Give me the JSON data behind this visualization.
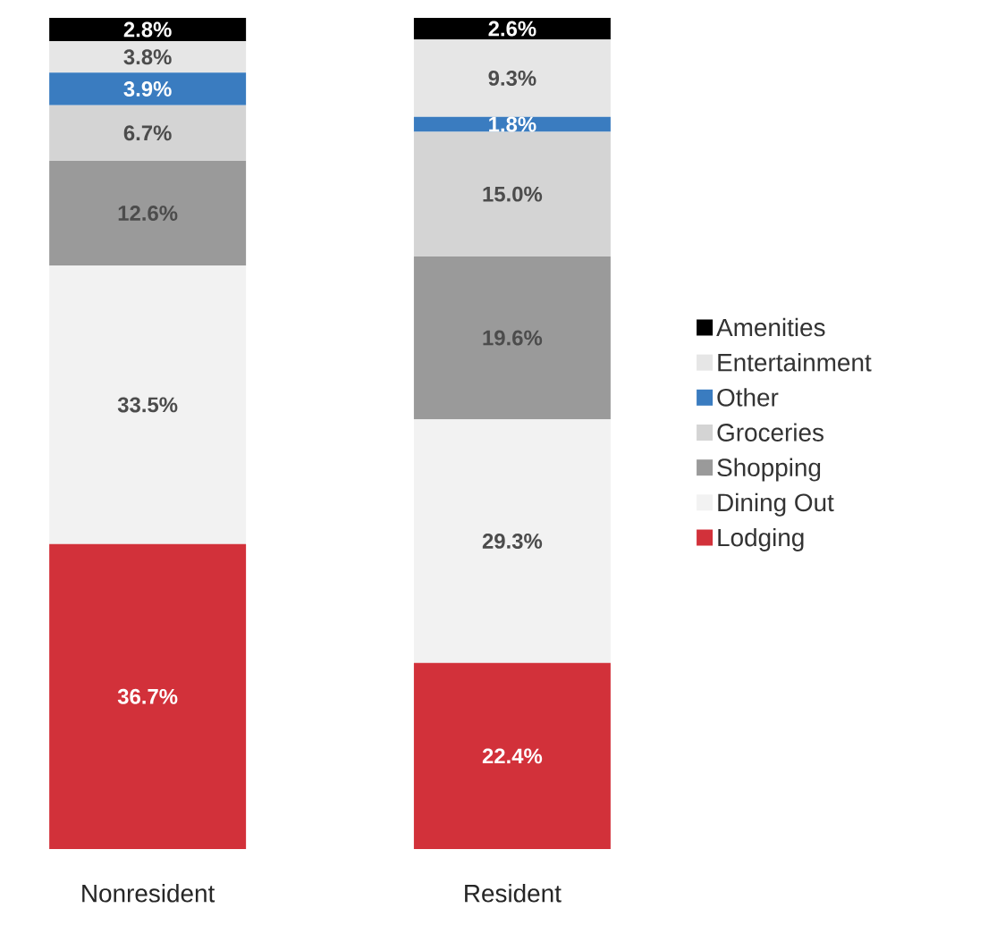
{
  "chart_data": {
    "type": "bar",
    "stacked": true,
    "legend": "right",
    "categories": [
      "Nonresident",
      "Resident"
    ],
    "series": [
      {
        "name": "Lodging",
        "color": "#d2313a",
        "values": [
          36.7,
          22.4
        ],
        "value_labels": [
          "36.7%",
          "22.4%"
        ]
      },
      {
        "name": "Dining Out",
        "color": "#f2f2f2",
        "values": [
          33.5,
          29.3
        ],
        "value_labels": [
          "33.5%",
          "29.3%"
        ]
      },
      {
        "name": "Shopping",
        "color": "#9a9a9a",
        "values": [
          12.6,
          19.6
        ],
        "value_labels": [
          "12.6%",
          "19.6%"
        ]
      },
      {
        "name": "Groceries",
        "color": "#d4d4d4",
        "values": [
          6.7,
          15.0
        ],
        "value_labels": [
          "6.7%",
          "15.0%"
        ]
      },
      {
        "name": "Other",
        "color": "#3a7cc0",
        "values": [
          3.9,
          1.8
        ],
        "value_labels": [
          "3.9%",
          "1.8%"
        ]
      },
      {
        "name": "Entertainment",
        "color": "#e6e6e6",
        "values": [
          3.8,
          9.3
        ],
        "value_labels": [
          "3.8%",
          "9.3%"
        ]
      },
      {
        "name": "Amenities",
        "color": "#000000",
        "values": [
          2.8,
          2.6
        ],
        "value_labels": [
          "2.8%",
          "2.6%"
        ]
      }
    ]
  }
}
